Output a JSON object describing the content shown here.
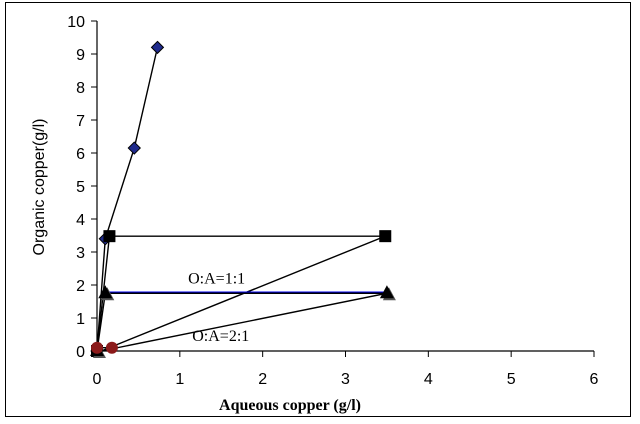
{
  "chart_data": {
    "type": "scatter",
    "xlabel": "Aqueous copper (g/l)",
    "ylabel": "Organic copper(g/l)",
    "xlim": [
      0,
      6
    ],
    "ylim": [
      0,
      10
    ],
    "xticks": [
      0,
      1,
      2,
      3,
      4,
      5,
      6
    ],
    "yticks": [
      0,
      1,
      2,
      3,
      4,
      5,
      6,
      7,
      8,
      9,
      10
    ],
    "grid": false,
    "series": [
      {
        "marker": "diamond",
        "color": "#1f2a8c",
        "line_color": "#000000",
        "x": [
          0.0,
          0.1,
          0.45,
          0.73
        ],
        "y": [
          0.0,
          3.4,
          6.15,
          9.2
        ]
      },
      {
        "marker": "square",
        "color": "#000000",
        "line_color": "#000000",
        "x": [
          0.0,
          0.15,
          3.48
        ],
        "y": [
          0.0,
          3.48,
          3.48
        ]
      },
      {
        "marker": "triangle",
        "color": "#000000",
        "line_color": "#000000",
        "x": [
          0.0,
          0.1,
          3.5
        ],
        "y": [
          0.0,
          1.75,
          1.75
        ]
      },
      {
        "marker": "circle",
        "color": "#8b1a1a",
        "line_color": "#000000",
        "x": [
          0.0,
          0.18
        ],
        "y": [
          0.1,
          0.1
        ]
      }
    ],
    "lines": [
      {
        "color": "#000000",
        "x": [
          0.05,
          3.48
        ],
        "y": [
          0.0,
          3.48
        ]
      },
      {
        "color": "#000000",
        "x": [
          0.05,
          3.5
        ],
        "y": [
          0.0,
          1.75
        ]
      },
      {
        "color": "#0000ee",
        "x": [
          0.12,
          3.5
        ],
        "y": [
          1.78,
          1.78
        ]
      }
    ],
    "annotations": [
      {
        "text": "O:A=1:1",
        "x": 1.1,
        "y": 2.05
      },
      {
        "text": "O:A=2:1",
        "x": 1.15,
        "y": 0.3
      }
    ]
  }
}
